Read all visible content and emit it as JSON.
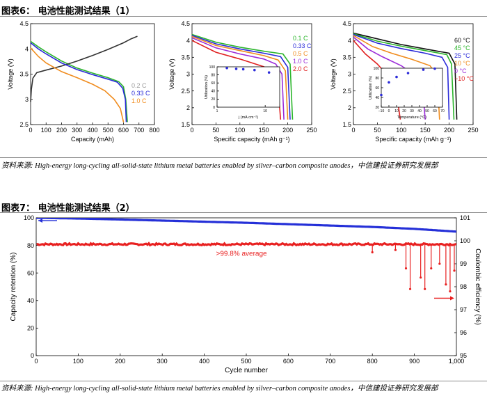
{
  "figure6": {
    "title": "图表6：   电池性能测试结果（1）",
    "source": "资料来源: High-energy long-cycling all-solid-state lithium metal batteries enabled by silver–carbon composite anodes，中信建投证券研究发展部"
  },
  "figure7": {
    "title": "图表7：   电池性能测试结果（2）",
    "source": "资料来源: High-energy long-cycling all-solid-state lithium metal batteries enabled by silver–carbon composite anodes，中信建投证券研究发展部"
  },
  "chart_data": [
    {
      "id": "rate-voltage-capacity",
      "type": "line",
      "xlabel": "Capacity (mAh)",
      "ylabel": "Voltage (V)",
      "xlim": [
        0,
        800
      ],
      "ylim": [
        2.5,
        4.5
      ],
      "xticks": [
        0,
        100,
        200,
        300,
        400,
        500,
        600,
        700,
        800
      ],
      "yticks": [
        2.5,
        3.0,
        3.5,
        4.0,
        4.5
      ],
      "legend": [
        {
          "label": "0.2 C",
          "color": "#9a9a9a"
        },
        {
          "label": "0.33 C",
          "color": "#2b2bd9"
        },
        {
          "label": "1.0 C",
          "color": "#f08c1e"
        }
      ],
      "series": [
        {
          "name": "0.2 C discharge",
          "color": "#2ab52a",
          "points": [
            [
              0,
              4.15
            ],
            [
              50,
              4.04
            ],
            [
              100,
              3.94
            ],
            [
              200,
              3.76
            ],
            [
              300,
              3.62
            ],
            [
              400,
              3.52
            ],
            [
              500,
              3.43
            ],
            [
              570,
              3.35
            ],
            [
              600,
              3.25
            ],
            [
              615,
              3.0
            ],
            [
              625,
              2.55
            ]
          ]
        },
        {
          "name": "0.2 C charge",
          "color": "#333333",
          "points": [
            [
              0,
              2.95
            ],
            [
              5,
              3.2
            ],
            [
              15,
              3.42
            ],
            [
              40,
              3.53
            ],
            [
              100,
              3.58
            ],
            [
              200,
              3.66
            ],
            [
              300,
              3.76
            ],
            [
              400,
              3.87
            ],
            [
              500,
              3.99
            ],
            [
              600,
              4.12
            ],
            [
              650,
              4.2
            ],
            [
              690,
              4.25
            ]
          ]
        },
        {
          "name": "0.33 C",
          "color": "#2b2bd9",
          "points": [
            [
              0,
              4.12
            ],
            [
              50,
              4.0
            ],
            [
              100,
              3.9
            ],
            [
              200,
              3.72
            ],
            [
              300,
              3.59
            ],
            [
              400,
              3.49
            ],
            [
              500,
              3.4
            ],
            [
              560,
              3.34
            ],
            [
              595,
              3.22
            ],
            [
              612,
              3.0
            ],
            [
              618,
              2.55
            ]
          ]
        },
        {
          "name": "1.0 C",
          "color": "#f08c1e",
          "points": [
            [
              0,
              4.02
            ],
            [
              50,
              3.85
            ],
            [
              100,
              3.72
            ],
            [
              200,
              3.55
            ],
            [
              300,
              3.43
            ],
            [
              400,
              3.3
            ],
            [
              480,
              3.17
            ],
            [
              540,
              3.0
            ],
            [
              580,
              2.82
            ],
            [
              600,
              2.55
            ]
          ]
        }
      ]
    },
    {
      "id": "rate-specific-capacity",
      "type": "line",
      "xlabel": "Specific capacity (mAh g⁻¹)",
      "ylabel": "Voltage (V)",
      "xlim": [
        0,
        250
      ],
      "ylim": [
        1.5,
        4.5
      ],
      "xticks": [
        0,
        50,
        100,
        150,
        200,
        250
      ],
      "yticks": [
        1.5,
        2.0,
        2.5,
        3.0,
        3.5,
        4.0,
        4.5
      ],
      "legend": [
        {
          "label": "0.1 C",
          "color": "#2ab52a"
        },
        {
          "label": "0.33 C",
          "color": "#2b2bd9"
        },
        {
          "label": "0.5 C",
          "color": "#f08c1e"
        },
        {
          "label": "1.0 C",
          "color": "#9b2bd9"
        },
        {
          "label": "2.0 C",
          "color": "#e02020"
        }
      ],
      "series": [
        {
          "name": "0.1 C",
          "color": "#2ab52a",
          "points": [
            [
              0,
              4.18
            ],
            [
              50,
              3.95
            ],
            [
              100,
              3.8
            ],
            [
              150,
              3.68
            ],
            [
              190,
              3.6
            ],
            [
              205,
              3.3
            ],
            [
              210,
              1.65
            ]
          ]
        },
        {
          "name": "0.33 C",
          "color": "#2b2bd9",
          "points": [
            [
              0,
              4.15
            ],
            [
              50,
              3.9
            ],
            [
              100,
              3.75
            ],
            [
              150,
              3.62
            ],
            [
              185,
              3.52
            ],
            [
              200,
              3.2
            ],
            [
              205,
              1.65
            ]
          ]
        },
        {
          "name": "0.5 C",
          "color": "#f08c1e",
          "points": [
            [
              0,
              4.12
            ],
            [
              50,
              3.85
            ],
            [
              100,
              3.7
            ],
            [
              150,
              3.55
            ],
            [
              180,
              3.42
            ],
            [
              195,
              3.1
            ],
            [
              200,
              1.65
            ]
          ]
        },
        {
          "name": "1.0 C",
          "color": "#9b2bd9",
          "points": [
            [
              0,
              4.08
            ],
            [
              50,
              3.78
            ],
            [
              100,
              3.6
            ],
            [
              150,
              3.45
            ],
            [
              175,
              3.3
            ],
            [
              188,
              3.0
            ],
            [
              192,
              1.65
            ]
          ]
        },
        {
          "name": "2.0 C",
          "color": "#e02020",
          "points": [
            [
              0,
              4.0
            ],
            [
              50,
              3.65
            ],
            [
              100,
              3.45
            ],
            [
              150,
              3.22
            ],
            [
              170,
              3.0
            ],
            [
              180,
              2.6
            ],
            [
              185,
              1.65
            ]
          ]
        }
      ],
      "inset": {
        "xlabel": "j (mA cm⁻²)",
        "ylabel": "Utilization (%)",
        "xscale": "log",
        "xlim": [
          1,
          20
        ],
        "ylim": [
          0,
          100
        ],
        "xticks": [
          1,
          10
        ],
        "yticks": [
          0,
          20,
          40,
          60,
          80,
          100
        ],
        "points": [
          [
            1.6,
            97
          ],
          [
            2.5,
            95
          ],
          [
            3.5,
            94
          ],
          [
            6,
            92
          ],
          [
            12,
            86
          ]
        ]
      }
    },
    {
      "id": "temperature-specific-capacity",
      "type": "line",
      "xlabel": "Specific capacity (mAh g⁻¹)",
      "ylabel": "Voltage (V)",
      "xlim": [
        0,
        250
      ],
      "ylim": [
        1.5,
        4.5
      ],
      "xticks": [
        0,
        50,
        100,
        150,
        200,
        250
      ],
      "yticks": [
        1.5,
        2.0,
        2.5,
        3.0,
        3.5,
        4.0,
        4.5
      ],
      "legend": [
        {
          "label": "60 °C",
          "color": "#111111"
        },
        {
          "label": "45 °C",
          "color": "#2ab52a"
        },
        {
          "label": "25 °C",
          "color": "#2b2bd9"
        },
        {
          "label": "10 °C",
          "color": "#f08c1e"
        },
        {
          "label": "0 °C",
          "color": "#9b2bd9"
        },
        {
          "label": "−10 °C",
          "color": "#e02020"
        }
      ],
      "series": [
        {
          "name": "60 °C",
          "color": "#111111",
          "points": [
            [
              0,
              4.22
            ],
            [
              50,
              4.05
            ],
            [
              100,
              3.88
            ],
            [
              150,
              3.75
            ],
            [
              200,
              3.62
            ],
            [
              212,
              3.3
            ],
            [
              216,
              1.65
            ]
          ]
        },
        {
          "name": "45 °C",
          "color": "#2ab52a",
          "points": [
            [
              0,
              4.2
            ],
            [
              50,
              3.98
            ],
            [
              100,
              3.83
            ],
            [
              150,
              3.7
            ],
            [
              195,
              3.58
            ],
            [
              205,
              3.3
            ],
            [
              210,
              1.65
            ]
          ]
        },
        {
          "name": "25 °C",
          "color": "#2b2bd9",
          "points": [
            [
              0,
              4.18
            ],
            [
              50,
              3.92
            ],
            [
              100,
              3.76
            ],
            [
              150,
              3.62
            ],
            [
              185,
              3.5
            ],
            [
              197,
              3.2
            ],
            [
              200,
              1.65
            ]
          ]
        },
        {
          "name": "10 °C",
          "color": "#f08c1e",
          "points": [
            [
              0,
              4.15
            ],
            [
              40,
              3.82
            ],
            [
              80,
              3.62
            ],
            [
              120,
              3.45
            ],
            [
              160,
              3.25
            ],
            [
              175,
              2.95
            ],
            [
              180,
              1.65
            ]
          ]
        },
        {
          "name": "0 °C",
          "color": "#9b2bd9",
          "points": [
            [
              0,
              4.1
            ],
            [
              30,
              3.75
            ],
            [
              60,
              3.52
            ],
            [
              100,
              3.25
            ],
            [
              130,
              2.95
            ],
            [
              145,
              2.5
            ],
            [
              150,
              1.65
            ]
          ]
        },
        {
          "name": "−10 °C",
          "color": "#e02020",
          "points": [
            [
              0,
              4.0
            ],
            [
              25,
              3.6
            ],
            [
              50,
              3.3
            ],
            [
              75,
              2.9
            ],
            [
              90,
              2.45
            ],
            [
              98,
              1.65
            ]
          ]
        }
      ],
      "inset": {
        "xlabel": "Temperature (°C)",
        "ylabel": "Utilization (%)",
        "xlim": [
          -10,
          70
        ],
        "ylim": [
          20,
          100
        ],
        "xticks": [
          -10,
          0,
          10,
          20,
          30,
          40,
          50,
          60,
          70
        ],
        "yticks": [
          20,
          40,
          60,
          80,
          100
        ],
        "points": [
          [
            -10,
            45
          ],
          [
            0,
            71
          ],
          [
            10,
            82
          ],
          [
            25,
            90
          ],
          [
            45,
            97
          ],
          [
            60,
            99
          ]
        ]
      }
    },
    {
      "id": "cycling-retention-efficiency",
      "type": "scatter",
      "xlabel": "Cycle number",
      "ylabel": "Capacity retention (%)",
      "y2label": "Coulombic efficiency (%)",
      "xlim": [
        0,
        1000
      ],
      "ylim": [
        0,
        100
      ],
      "y2lim": [
        95,
        101
      ],
      "xticks": [
        0,
        100,
        200,
        300,
        400,
        500,
        600,
        700,
        800,
        900,
        1000
      ],
      "xticklabels": [
        "0",
        "100",
        "200",
        "300",
        "400",
        "500",
        "600",
        "700",
        "800",
        "900",
        "1,000"
      ],
      "yticks": [
        0,
        20,
        40,
        60,
        80,
        100
      ],
      "y2ticks": [
        95,
        96,
        97,
        98,
        99,
        100,
        101
      ],
      "annotation": ">99.8% average",
      "series": [
        {
          "name": "Capacity retention",
          "axis": "left",
          "color": "#2530d8",
          "cycles": [
            0,
            100,
            200,
            300,
            400,
            500,
            600,
            700,
            800,
            900,
            1000
          ],
          "values": [
            100,
            99.5,
            98.8,
            98,
            97.2,
            96.4,
            95.4,
            94.4,
            93.4,
            92,
            90
          ]
        },
        {
          "name": "Coulombic efficiency",
          "axis": "right",
          "color": "#e82020",
          "baseline": 99.85,
          "dips": [
            [
              800,
              99.5
            ],
            [
              855,
              99.6
            ],
            [
              880,
              98.8
            ],
            [
              890,
              97.9
            ],
            [
              915,
              98.4
            ],
            [
              925,
              97.9
            ],
            [
              940,
              98.8
            ],
            [
              960,
              99.0
            ],
            [
              975,
              98.1
            ],
            [
              985,
              97.8
            ],
            [
              995,
              98.7
            ]
          ]
        }
      ]
    }
  ]
}
